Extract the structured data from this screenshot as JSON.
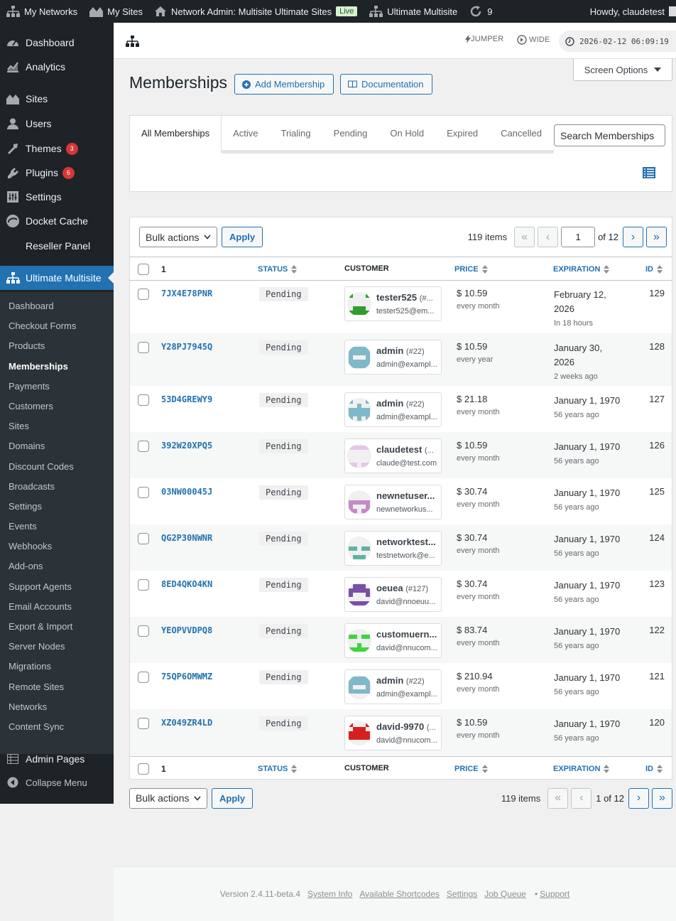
{
  "adminbar": {
    "my_networks": "My Networks",
    "my_sites": "My Sites",
    "network_admin": "Network Admin: Multisite Ultimate Sites",
    "live_badge": "Live",
    "ultimate_multisite": "Ultimate Multisite",
    "updates_count": "9",
    "howdy": "Howdy, claudetest"
  },
  "sidebar": {
    "menu": [
      {
        "label": "Dashboard",
        "icon": "dashboard-icon"
      },
      {
        "label": "Analytics",
        "icon": "analytics-icon"
      },
      {
        "label": "Sites",
        "icon": "sites-icon"
      },
      {
        "label": "Users",
        "icon": "users-icon"
      },
      {
        "label": "Themes",
        "icon": "themes-icon",
        "badge": "3"
      },
      {
        "label": "Plugins",
        "icon": "plugins-icon",
        "badge": "6"
      },
      {
        "label": "Settings",
        "icon": "settings-icon"
      },
      {
        "label": "Docket Cache",
        "icon": "docket-cache-icon"
      },
      {
        "label": "Reseller Panel",
        "icon": ""
      },
      {
        "label": "Ultimate Multisite",
        "icon": "network-icon"
      }
    ],
    "submenu": [
      "Dashboard",
      "Checkout Forms",
      "Products",
      "Memberships",
      "Payments",
      "Customers",
      "Sites",
      "Domains",
      "Discount Codes",
      "Broadcasts",
      "Settings",
      "Events",
      "Webhooks",
      "Add-ons",
      "Support Agents",
      "Email Accounts",
      "Export & Import",
      "Server Nodes",
      "Migrations",
      "Remote Sites",
      "Networks",
      "Content Sync"
    ],
    "admin_pages": "Admin Pages",
    "collapse": "Collapse Menu"
  },
  "toolbar": {
    "jumper": "JUMPER",
    "wide": "WIDE",
    "clock": "2026-02-12 06:09:19"
  },
  "screen_options": "Screen Options",
  "page": {
    "title": "Memberships",
    "add_button": "Add Membership",
    "docs_button": "Documentation"
  },
  "filters": {
    "tabs": [
      "All Memberships",
      "Active",
      "Trialing",
      "Pending",
      "On Hold",
      "Expired",
      "Cancelled"
    ],
    "search_placeholder": "Search Memberships"
  },
  "list": {
    "bulk_label": "Bulk actions",
    "apply": "Apply",
    "items": "119 items",
    "page_value": "1",
    "of_pages": "of 12",
    "page_text": "1 of 12",
    "columns": {
      "id_col": "1",
      "status": "STATUS",
      "customer": "CUSTOMER",
      "price": "PRICE",
      "expiration": "EXPIRATION",
      "id": "ID"
    },
    "rows": [
      {
        "code": "7JX4E78PNR",
        "status": "Pending",
        "name": "tester525",
        "uid": "(#...",
        "email": "tester525@em...",
        "price": "$ 10.59",
        "period": "every month",
        "exp": "February 12, 2026",
        "exp_sub": "In 18 hours",
        "id": "129",
        "avatar_color": "#2e9d2e"
      },
      {
        "code": "Y28PJ7945Q",
        "status": "Pending",
        "name": "admin",
        "uid": "(#22)",
        "email": "admin@exampl...",
        "price": "$ 10.59",
        "period": "every year",
        "exp": "January 30, 2026",
        "exp_sub": "2 weeks ago",
        "id": "128",
        "avatar_color": "#7fb8c9"
      },
      {
        "code": "53D4GREWY9",
        "status": "Pending",
        "name": "admin",
        "uid": "(#22)",
        "email": "admin@exampl...",
        "price": "$ 21.18",
        "period": "every month",
        "exp": "January 1, 1970",
        "exp_sub": "56 years ago",
        "id": "127",
        "avatar_color": "#7fb8c9"
      },
      {
        "code": "392W20XPQ5",
        "status": "Pending",
        "name": "claudetest",
        "uid": "(...",
        "email": "claude@test.com",
        "price": "$ 10.59",
        "period": "every month",
        "exp": "January 1, 1970",
        "exp_sub": "56 years ago",
        "id": "126",
        "avatar_color": "#e6c6e6"
      },
      {
        "code": "03NW00045J",
        "status": "Pending",
        "name": "newnetuser...",
        "uid": "",
        "email": "newnetworkus...",
        "price": "$ 30.74",
        "period": "every month",
        "exp": "January 1, 1970",
        "exp_sub": "56 years ago",
        "id": "125",
        "avatar_color": "#c58bc5"
      },
      {
        "code": "QG2P30NWNR",
        "status": "Pending",
        "name": "networktest...",
        "uid": "",
        "email": "testnetwork@e...",
        "price": "$ 30.74",
        "period": "every month",
        "exp": "January 1, 1970",
        "exp_sub": "56 years ago",
        "id": "124",
        "avatar_color": "#5fb3a1"
      },
      {
        "code": "8ED4QKO4KN",
        "status": "Pending",
        "name": "oeuea",
        "uid": "(#127)",
        "email": "david@nnoeuu...",
        "price": "$ 30.74",
        "period": "every month",
        "exp": "January 1, 1970",
        "exp_sub": "56 years ago",
        "id": "123",
        "avatar_color": "#7b4fa8"
      },
      {
        "code": "YEOPVVDPQ8",
        "status": "Pending",
        "name": "customuern...",
        "uid": "",
        "email": "david@nnucom...",
        "price": "$ 83.74",
        "period": "every month",
        "exp": "January 1, 1970",
        "exp_sub": "56 years ago",
        "id": "122",
        "avatar_color": "#3fd43f"
      },
      {
        "code": "75QP6OMWMZ",
        "status": "Pending",
        "name": "admin",
        "uid": "(#22)",
        "email": "admin@exampl...",
        "price": "$ 210.94",
        "period": "every month",
        "exp": "January 1, 1970",
        "exp_sub": "56 years ago",
        "id": "121",
        "avatar_color": "#7fb8c9"
      },
      {
        "code": "XZ049ZR4LD",
        "status": "Pending",
        "name": "david-9970",
        "uid": "(...",
        "email": "david@nnucom...",
        "price": "$ 10.59",
        "period": "every month",
        "exp": "January 1, 1970",
        "exp_sub": "56 years ago",
        "id": "120",
        "avatar_color": "#d62020"
      }
    ]
  },
  "footer": {
    "version": "Version 2.4.11-beta.4",
    "links": [
      "System Info",
      "Available Shortcodes",
      "Settings",
      "Job Queue"
    ],
    "support": "Support"
  }
}
